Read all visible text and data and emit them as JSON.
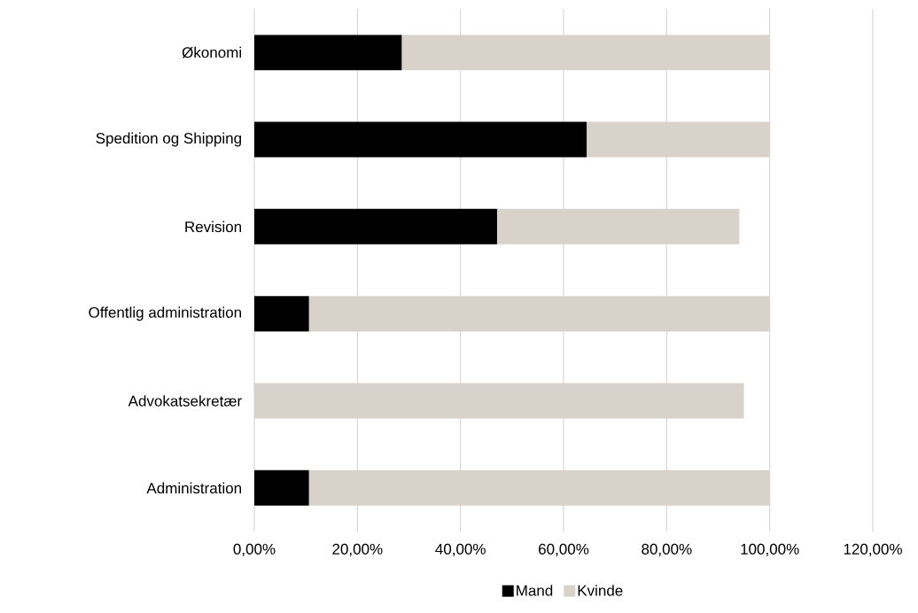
{
  "chart_data": {
    "type": "bar",
    "orientation": "horizontal",
    "stacked": true,
    "categories": [
      "Økonomi",
      "Spedition og Shipping",
      "Revision",
      "Offentlig administration",
      "Advokatsekretær",
      "Administration"
    ],
    "series": [
      {
        "name": "Mand",
        "color": "#000000",
        "values": [
          28.6,
          64.5,
          47.1,
          10.6,
          0,
          10.6
        ]
      },
      {
        "name": "Kvinde",
        "color": "#d9d2cb",
        "values": [
          71.4,
          35.5,
          47.0,
          89.4,
          95.0,
          89.4
        ]
      }
    ],
    "xlim": [
      0,
      120
    ],
    "xticks": [
      {
        "value": 0,
        "label": "0,00%"
      },
      {
        "value": 20,
        "label": "20,00%"
      },
      {
        "value": 40,
        "label": "40,00%"
      },
      {
        "value": 60,
        "label": "60,00%"
      },
      {
        "value": 80,
        "label": "80,00%"
      },
      {
        "value": 100,
        "label": "100,00%"
      },
      {
        "value": 120,
        "label": "120,00%"
      }
    ],
    "grid": "x",
    "legend": "bottom"
  }
}
